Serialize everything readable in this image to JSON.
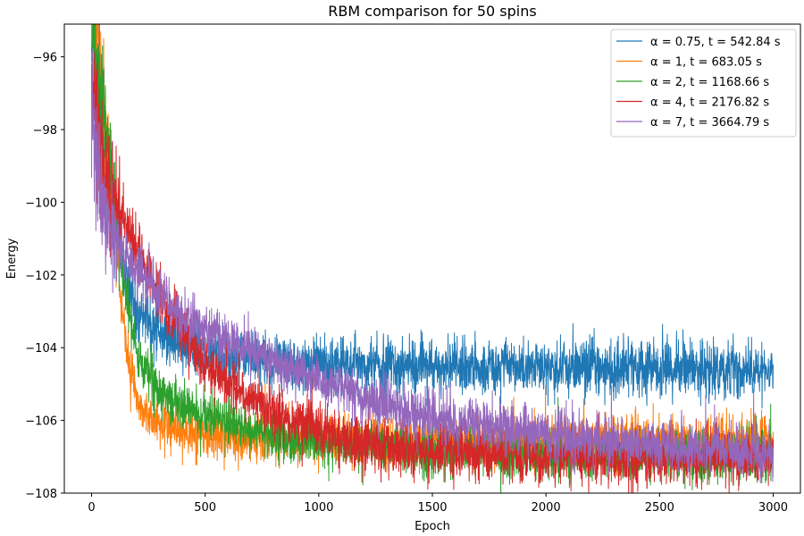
{
  "chart_data": {
    "type": "line",
    "title": "RBM comparison for 50 spins",
    "xlabel": "Epoch",
    "ylabel": "Energy",
    "xlim": [
      -120,
      3120
    ],
    "ylim": [
      -108,
      -95.1
    ],
    "xticks": [
      0,
      500,
      1000,
      1500,
      2000,
      2500,
      3000
    ],
    "yticks": [
      -108,
      -106,
      -104,
      -102,
      -100,
      -98,
      -96
    ],
    "xtick_labels": [
      "0",
      "500",
      "1000",
      "1500",
      "2000",
      "2500",
      "3000"
    ],
    "ytick_labels": [
      "−108",
      "−106",
      "−104",
      "−102",
      "−100",
      "−98",
      "−96"
    ],
    "legend_position": "top-right",
    "n_epochs": 3000,
    "series": [
      {
        "name": "α = 0.75, t = 542.84 s",
        "color": "#1f77b4",
        "approx_trend": {
          "x": [
            0,
            50,
            100,
            150,
            200,
            300,
            400,
            500,
            600,
            800,
            1000,
            1500,
            2000,
            2500,
            3000
          ],
          "y": [
            -95.0,
            -98.0,
            -100.3,
            -102.0,
            -103.0,
            -103.6,
            -103.9,
            -104.1,
            -104.2,
            -104.35,
            -104.45,
            -104.5,
            -104.55,
            -104.6,
            -104.6
          ]
        },
        "noise_amplitude": 0.38
      },
      {
        "name": "α = 1, t = 683.05 s",
        "color": "#ff7f0e",
        "approx_trend": {
          "x": [
            0,
            50,
            100,
            150,
            200,
            250,
            300,
            400,
            500,
            600,
            800,
            1000,
            1500,
            2000,
            2500,
            3000
          ],
          "y": [
            -94.5,
            -97.0,
            -100.5,
            -104.0,
            -105.4,
            -105.9,
            -106.1,
            -106.3,
            -106.4,
            -106.45,
            -106.5,
            -106.55,
            -106.6,
            -106.55,
            -106.5,
            -106.5
          ]
        },
        "noise_amplitude": 0.32
      },
      {
        "name": "α = 2, t = 1168.66 s",
        "color": "#2ca02c",
        "approx_trend": {
          "x": [
            0,
            50,
            100,
            150,
            200,
            300,
            400,
            500,
            600,
            800,
            1000,
            1500,
            2000,
            2500,
            3000
          ],
          "y": [
            -95.5,
            -97.5,
            -99.8,
            -102.5,
            -104.2,
            -105.2,
            -105.6,
            -105.9,
            -106.1,
            -106.4,
            -106.6,
            -106.85,
            -106.95,
            -107.0,
            -107.0
          ]
        },
        "noise_amplitude": 0.32
      },
      {
        "name": "α = 4, t = 2176.82 s",
        "color": "#d62728",
        "approx_trend": {
          "x": [
            0,
            50,
            100,
            200,
            300,
            400,
            500,
            600,
            800,
            1000,
            1200,
            1500,
            2000,
            2500,
            3000
          ],
          "y": [
            -96.5,
            -99.0,
            -100.0,
            -101.3,
            -102.6,
            -103.6,
            -104.4,
            -105.0,
            -105.8,
            -106.3,
            -106.6,
            -106.85,
            -107.0,
            -107.05,
            -107.0
          ]
        },
        "noise_amplitude": 0.36
      },
      {
        "name": "α = 7, t = 3664.79 s",
        "color": "#9467bd",
        "approx_trend": {
          "x": [
            0,
            50,
            100,
            200,
            300,
            400,
            500,
            600,
            800,
            1000,
            1200,
            1500,
            1800,
            2000,
            2500,
            3000
          ],
          "y": [
            -97.5,
            -100.3,
            -101.0,
            -101.8,
            -102.5,
            -103.1,
            -103.5,
            -103.8,
            -104.4,
            -104.9,
            -105.4,
            -105.9,
            -106.2,
            -106.4,
            -106.7,
            -106.9
          ]
        },
        "noise_amplitude": 0.33
      }
    ]
  }
}
